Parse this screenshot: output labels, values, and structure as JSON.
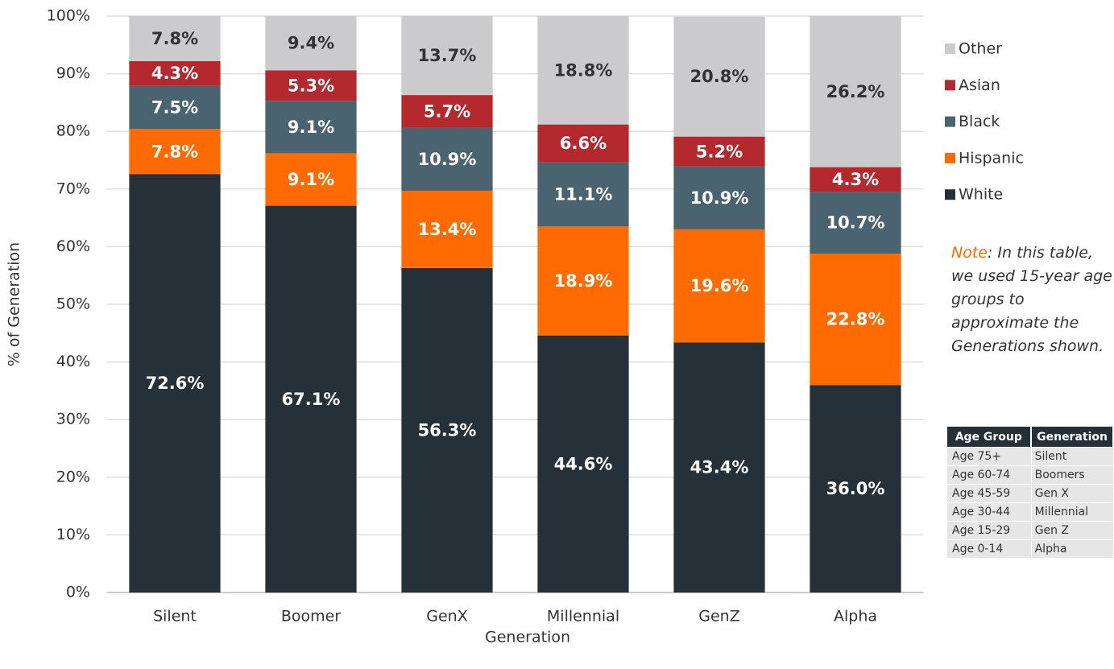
{
  "chart_data": {
    "type": "stacked_bar",
    "xlabel": "Generation",
    "ylabel": "% of Generation",
    "categories": [
      "Silent",
      "Boomer",
      "GenX",
      "Millennial",
      "GenZ",
      "Alpha"
    ],
    "series": [
      {
        "name": "White",
        "color": "#253039",
        "values": [
          72.6,
          67.1,
          56.3,
          44.6,
          43.4,
          36.0
        ],
        "value_labels": [
          "72.6%",
          "67.1%",
          "56.3%",
          "44.6%",
          "43.4%",
          "36.0%"
        ]
      },
      {
        "name": "Hispanic",
        "color": "#ff6b00",
        "values": [
          7.8,
          9.1,
          13.4,
          18.9,
          19.6,
          22.8
        ],
        "value_labels": [
          "7.8%",
          "9.1%",
          "13.4%",
          "18.9%",
          "19.6%",
          "22.8%"
        ]
      },
      {
        "name": "Black",
        "color": "#4a6370",
        "values": [
          7.5,
          9.1,
          10.9,
          11.1,
          10.9,
          10.7
        ],
        "value_labels": [
          "7.5%",
          "9.1%",
          "10.9%",
          "11.1%",
          "10.9%",
          "10.7%"
        ]
      },
      {
        "name": "Asian",
        "color": "#b3292e",
        "values": [
          4.3,
          5.3,
          5.7,
          6.6,
          5.2,
          4.3
        ],
        "value_labels": [
          "4.3%",
          "5.3%",
          "5.7%",
          "6.6%",
          "5.2%",
          "4.3%"
        ]
      },
      {
        "name": "Other",
        "color": "#cbcbcd",
        "values": [
          7.8,
          9.4,
          13.7,
          18.8,
          20.8,
          26.2
        ],
        "value_labels": [
          "7.8%",
          "9.4%",
          "13.7%",
          "18.8%",
          "20.8%",
          "26.2%"
        ]
      }
    ],
    "ylim": [
      0,
      100
    ],
    "yticks": [
      {
        "value": 0,
        "label": "0%"
      },
      {
        "value": 10,
        "label": "10%"
      },
      {
        "value": 20,
        "label": "20%"
      },
      {
        "value": 30,
        "label": "30%"
      },
      {
        "value": 40,
        "label": "40%"
      },
      {
        "value": 50,
        "label": "50%"
      },
      {
        "value": 60,
        "label": "60%"
      },
      {
        "value": 70,
        "label": "70%"
      },
      {
        "value": 80,
        "label": "80%"
      },
      {
        "value": 90,
        "label": "90%"
      },
      {
        "value": 100,
        "label": "100%"
      }
    ],
    "grid": true,
    "legend": "right",
    "note": {
      "label": "Note",
      "text": ": In this table, we used 15-year age groups to approximate the Generations shown."
    },
    "table": {
      "header": [
        "Age Group",
        "Generation"
      ],
      "rows": [
        [
          "Age 75+",
          "Silent"
        ],
        [
          "Age 60-74",
          "Boomers"
        ],
        [
          "Age 45-59",
          "Gen X"
        ],
        [
          "Age 30-44",
          "Millennial"
        ],
        [
          "Age 15-29",
          "Gen Z"
        ],
        [
          "Age 0-14",
          "Alpha"
        ]
      ]
    }
  }
}
